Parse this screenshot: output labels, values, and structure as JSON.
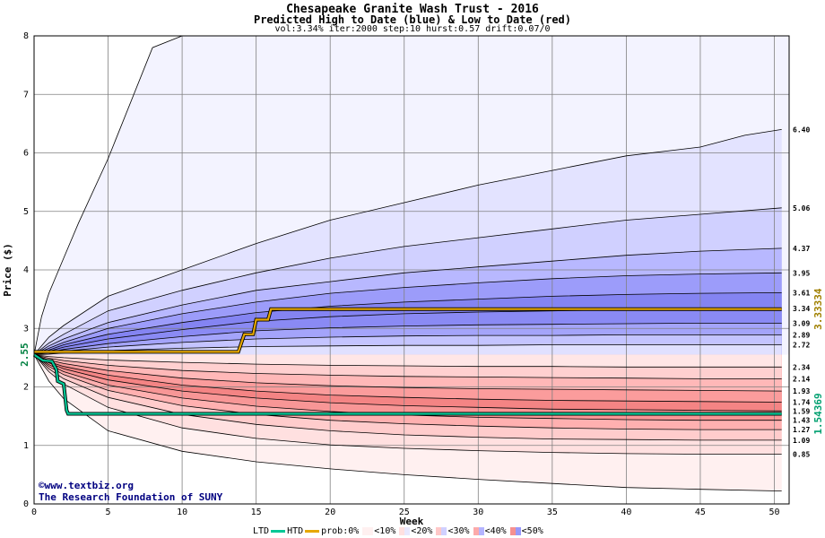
{
  "header": {
    "title": "Chesapeake Granite Wash Trust - 2016",
    "subtitle": "Predicted High to Date (blue) &  Low to Date (red)",
    "params": "vol:3.34% iter:2000 step:10 hurst:0.57 drift:0.07/0"
  },
  "credits": {
    "url": "©www.textbiz.org",
    "org": "The Research Foundation of SUNY"
  },
  "legend": {
    "ltd": "LTD",
    "htd": "HTD",
    "prob": "prob:0%",
    "b10": "<10%",
    "b20": "<20%",
    "b30": "<30%",
    "b40": "<40%",
    "b50": "<50%"
  },
  "colors": {
    "ltd_line": "#00c896",
    "htd_line": "#e6a800",
    "left_value": "#008040",
    "right_htd_value": "#a08000",
    "right_ltd_value": "#00a070"
  },
  "chart_data": {
    "type": "area",
    "xlabel": "Week",
    "ylabel": "Price ($)",
    "xlim": [
      0,
      51
    ],
    "ylim": [
      0,
      8
    ],
    "xticks": [
      0,
      5,
      10,
      15,
      20,
      25,
      30,
      35,
      40,
      45,
      50
    ],
    "yticks": [
      0,
      1,
      2,
      3,
      4,
      5,
      6,
      7,
      8
    ],
    "grid": true,
    "start_value": "2.55",
    "right_htd_value": "3.33334",
    "right_ltd_value": "1.54369",
    "high_end_labels": [
      "6.40",
      "5.06",
      "4.37",
      "3.95",
      "3.61",
      "3.34",
      "3.09",
      "2.89",
      "2.72"
    ],
    "low_end_labels": [
      "2.34",
      "2.14",
      "1.93",
      "1.74",
      "1.59",
      "1.43",
      "1.27",
      "1.09",
      "0.85"
    ],
    "high_bands": [
      {
        "end": 8.0,
        "x": [
          0,
          0.5,
          1,
          2,
          3,
          5,
          8,
          10
        ],
        "y": [
          2.55,
          3.2,
          3.6,
          4.2,
          4.8,
          5.9,
          7.8,
          8.0
        ],
        "color": "#f3f3ff"
      },
      {
        "end": 6.4,
        "x": [
          0,
          1,
          2,
          5,
          10,
          15,
          20,
          25,
          30,
          35,
          40,
          45,
          48,
          50.5
        ],
        "y": [
          2.55,
          2.85,
          3.05,
          3.55,
          4.0,
          4.45,
          4.85,
          5.15,
          5.45,
          5.7,
          5.95,
          6.1,
          6.3,
          6.4
        ],
        "color": "#e3e3ff"
      },
      {
        "end": 5.06,
        "x": [
          0,
          1,
          2,
          5,
          10,
          15,
          20,
          25,
          30,
          35,
          40,
          45,
          50.5
        ],
        "y": [
          2.55,
          2.75,
          2.9,
          3.3,
          3.65,
          3.95,
          4.2,
          4.4,
          4.55,
          4.7,
          4.85,
          4.95,
          5.06
        ],
        "color": "#d0d0ff"
      },
      {
        "end": 4.37,
        "x": [
          0,
          1,
          2,
          5,
          10,
          15,
          20,
          25,
          30,
          35,
          40,
          45,
          50.5
        ],
        "y": [
          2.55,
          2.7,
          2.82,
          3.1,
          3.4,
          3.65,
          3.8,
          3.95,
          4.05,
          4.15,
          4.25,
          4.32,
          4.37
        ],
        "color": "#b8b8ff"
      },
      {
        "end": 3.95,
        "x": [
          0,
          1,
          2,
          5,
          10,
          15,
          20,
          25,
          30,
          35,
          40,
          45,
          50.5
        ],
        "y": [
          2.55,
          2.66,
          2.76,
          3.0,
          3.25,
          3.45,
          3.6,
          3.7,
          3.78,
          3.85,
          3.9,
          3.93,
          3.95
        ],
        "color": "#9c9cfa"
      },
      {
        "end": 3.61,
        "x": [
          0,
          1,
          2,
          5,
          10,
          15,
          20,
          25,
          30,
          35,
          40,
          45,
          50.5
        ],
        "y": [
          2.55,
          2.63,
          2.72,
          2.9,
          3.1,
          3.27,
          3.38,
          3.45,
          3.5,
          3.55,
          3.58,
          3.6,
          3.61
        ],
        "color": "#8484f2"
      },
      {
        "end": 3.34,
        "x": [
          0,
          1,
          2,
          5,
          10,
          15,
          20,
          25,
          30,
          35,
          40,
          45,
          50.5
        ],
        "y": [
          2.55,
          2.61,
          2.68,
          2.82,
          2.98,
          3.12,
          3.2,
          3.25,
          3.28,
          3.3,
          3.32,
          3.33,
          3.34
        ],
        "color": "#8a8af4"
      },
      {
        "end": 3.09,
        "x": [
          0,
          1,
          2,
          5,
          10,
          15,
          20,
          25,
          30,
          35,
          40,
          45,
          50.5
        ],
        "y": [
          2.55,
          2.59,
          2.64,
          2.74,
          2.86,
          2.96,
          3.01,
          3.04,
          3.06,
          3.07,
          3.08,
          3.09,
          3.09
        ],
        "color": "#a4a4fa"
      },
      {
        "end": 2.89,
        "x": [
          0,
          1,
          2,
          5,
          10,
          15,
          20,
          25,
          30,
          35,
          40,
          45,
          50.5
        ],
        "y": [
          2.55,
          2.58,
          2.61,
          2.68,
          2.76,
          2.82,
          2.85,
          2.87,
          2.88,
          2.88,
          2.89,
          2.89,
          2.89
        ],
        "color": "#c4c4ff"
      },
      {
        "end": 2.72,
        "x": [
          0,
          1,
          2,
          5,
          10,
          15,
          20,
          25,
          30,
          35,
          40,
          45,
          50.5
        ],
        "y": [
          2.55,
          2.56,
          2.58,
          2.62,
          2.66,
          2.69,
          2.7,
          2.71,
          2.71,
          2.72,
          2.72,
          2.72,
          2.72
        ],
        "color": "#e0e0ff"
      }
    ],
    "low_bands": [
      {
        "end": 2.34,
        "x": [
          0,
          1,
          2,
          5,
          10,
          15,
          20,
          25,
          30,
          35,
          40,
          45,
          50.5
        ],
        "y": [
          2.55,
          2.52,
          2.5,
          2.46,
          2.42,
          2.39,
          2.37,
          2.36,
          2.35,
          2.35,
          2.34,
          2.34,
          2.34
        ],
        "color": "#ffe6e6"
      },
      {
        "end": 2.14,
        "x": [
          0,
          1,
          2,
          5,
          10,
          15,
          20,
          25,
          30,
          35,
          40,
          45,
          50.5
        ],
        "y": [
          2.55,
          2.49,
          2.45,
          2.37,
          2.28,
          2.23,
          2.2,
          2.18,
          2.17,
          2.16,
          2.15,
          2.14,
          2.14
        ],
        "color": "#ffd0d0"
      },
      {
        "end": 1.93,
        "x": [
          0,
          1,
          2,
          5,
          10,
          15,
          20,
          25,
          30,
          35,
          40,
          45,
          50.5
        ],
        "y": [
          2.55,
          2.46,
          2.4,
          2.28,
          2.15,
          2.07,
          2.02,
          1.99,
          1.97,
          1.96,
          1.95,
          1.94,
          1.93
        ],
        "color": "#ffb8b8"
      },
      {
        "end": 1.74,
        "x": [
          0,
          1,
          2,
          5,
          10,
          15,
          20,
          25,
          30,
          35,
          40,
          45,
          50.5
        ],
        "y": [
          2.55,
          2.43,
          2.35,
          2.2,
          2.03,
          1.93,
          1.86,
          1.82,
          1.79,
          1.77,
          1.76,
          1.75,
          1.74
        ],
        "color": "#fb9c9c"
      },
      {
        "end": 1.59,
        "x": [
          0,
          1,
          2,
          5,
          10,
          15,
          20,
          25,
          30,
          35,
          40,
          45,
          50.5
        ],
        "y": [
          2.55,
          2.41,
          2.31,
          2.12,
          1.93,
          1.81,
          1.73,
          1.68,
          1.65,
          1.62,
          1.61,
          1.6,
          1.59
        ],
        "color": "#f48484"
      },
      {
        "end": 1.43,
        "x": [
          0,
          1,
          2,
          5,
          10,
          15,
          20,
          25,
          30,
          35,
          40,
          45,
          50.5
        ],
        "y": [
          2.55,
          2.38,
          2.26,
          2.03,
          1.81,
          1.67,
          1.58,
          1.52,
          1.48,
          1.46,
          1.44,
          1.43,
          1.43
        ],
        "color": "#f89696"
      },
      {
        "end": 1.27,
        "x": [
          0,
          1,
          2,
          5,
          10,
          15,
          20,
          25,
          30,
          35,
          40,
          45,
          50.5
        ],
        "y": [
          2.55,
          2.35,
          2.21,
          1.94,
          1.68,
          1.53,
          1.43,
          1.37,
          1.33,
          1.3,
          1.28,
          1.27,
          1.27
        ],
        "color": "#ffb0b0"
      },
      {
        "end": 1.09,
        "x": [
          0,
          1,
          2,
          5,
          10,
          15,
          20,
          25,
          30,
          35,
          40,
          45,
          50.5
        ],
        "y": [
          2.55,
          2.31,
          2.14,
          1.82,
          1.53,
          1.36,
          1.25,
          1.18,
          1.14,
          1.11,
          1.1,
          1.09,
          1.09
        ],
        "color": "#ffcccc"
      },
      {
        "end": 0.85,
        "x": [
          0,
          1,
          2,
          5,
          10,
          15,
          20,
          25,
          30,
          35,
          40,
          45,
          50.5
        ],
        "y": [
          2.55,
          2.26,
          2.05,
          1.65,
          1.3,
          1.12,
          1.01,
          0.95,
          0.91,
          0.88,
          0.86,
          0.85,
          0.85
        ],
        "color": "#ffe0e0"
      },
      {
        "end": 0.22,
        "x": [
          0,
          1,
          2,
          5,
          10,
          15,
          20,
          25,
          30,
          35,
          40,
          45,
          50.5
        ],
        "y": [
          2.55,
          2.1,
          1.8,
          1.25,
          0.9,
          0.72,
          0.6,
          0.5,
          0.42,
          0.35,
          0.28,
          0.25,
          0.22
        ],
        "color": "#fff0f0"
      }
    ],
    "htd_series": {
      "name": "HTD",
      "x": [
        0,
        13.8,
        14.2,
        14.8,
        15.0,
        15.8,
        16.0,
        50.5
      ],
      "y": [
        2.6,
        2.6,
        2.9,
        2.9,
        3.15,
        3.15,
        3.33,
        3.33
      ]
    },
    "ltd_series": {
      "name": "LTD",
      "x": [
        0,
        0.6,
        1.2,
        1.5,
        1.6,
        2.0,
        2.2,
        2.3,
        50.5
      ],
      "y": [
        2.55,
        2.45,
        2.44,
        2.3,
        2.1,
        2.05,
        1.6,
        1.54,
        1.54
      ]
    }
  }
}
